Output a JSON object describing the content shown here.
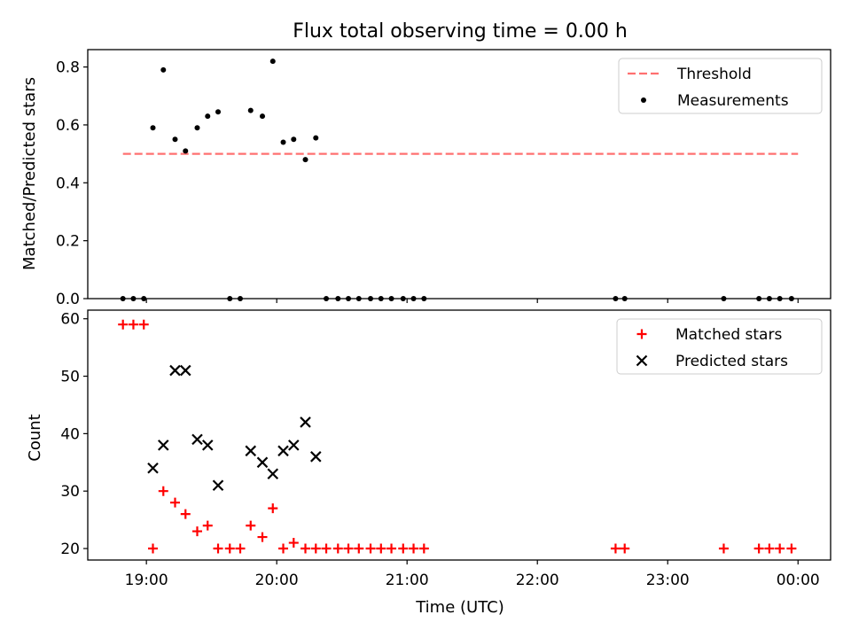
{
  "chart_data": [
    {
      "type": "scatter",
      "title": "Flux total observing time = 0.00 h",
      "xlabel": "",
      "ylabel": "Matched/Predicted stars",
      "xlim": [
        18.55,
        24.25
      ],
      "ylim": [
        0,
        0.86
      ],
      "yticks": [
        0.0,
        0.2,
        0.4,
        0.6,
        0.8
      ],
      "ytick_labels": [
        "0.0",
        "0.2",
        "0.4",
        "0.6",
        "0.8"
      ],
      "legend_position": "upper right",
      "colors": {
        "threshold": "#ff7070",
        "measurements": "#000000"
      },
      "series": [
        {
          "name": "Threshold",
          "kind": "dashed-line",
          "x": [
            18.82,
            24.0
          ],
          "y": [
            0.5,
            0.5
          ]
        },
        {
          "name": "Measurements",
          "kind": "dot",
          "x": [
            18.82,
            18.9,
            18.98,
            19.05,
            19.13,
            19.22,
            19.3,
            19.39,
            19.47,
            19.55,
            19.64,
            19.72,
            19.8,
            19.89,
            19.97,
            20.05,
            20.13,
            20.22,
            20.3,
            20.38,
            20.47,
            20.55,
            20.63,
            20.72,
            20.8,
            20.88,
            20.97,
            21.05,
            21.13,
            22.6,
            22.67,
            23.43,
            23.7,
            23.78,
            23.86,
            23.95
          ],
          "y": [
            0.0,
            0.0,
            0.0,
            0.59,
            0.79,
            0.55,
            0.51,
            0.59,
            0.63,
            0.645,
            0.0,
            0.0,
            0.65,
            0.63,
            0.82,
            0.54,
            0.55,
            0.48,
            0.555,
            0.0,
            0.0,
            0.0,
            0.0,
            0.0,
            0.0,
            0.0,
            0.0,
            0.0,
            0.0,
            0.0,
            0.0,
            0.0,
            0.0,
            0.0,
            0.0,
            0.0
          ]
        }
      ]
    },
    {
      "type": "scatter",
      "title": "",
      "xlabel": "Time (UTC)",
      "ylabel": "Count",
      "xlim": [
        18.55,
        24.25
      ],
      "ylim": [
        18,
        61.5
      ],
      "yticks": [
        20,
        30,
        40,
        50,
        60
      ],
      "ytick_labels": [
        "20",
        "30",
        "40",
        "50",
        "60"
      ],
      "xticks": [
        19,
        20,
        21,
        22,
        23,
        24
      ],
      "xtick_labels": [
        "19:00",
        "20:00",
        "21:00",
        "22:00",
        "23:00",
        "00:00"
      ],
      "legend_position": "upper right",
      "colors": {
        "matched": "#ff0000",
        "predicted": "#000000"
      },
      "series": [
        {
          "name": "Matched stars",
          "kind": "plus",
          "x": [
            18.82,
            18.9,
            18.98,
            19.05,
            19.13,
            19.22,
            19.3,
            19.39,
            19.47,
            19.55,
            19.64,
            19.72,
            19.8,
            19.89,
            19.97,
            20.05,
            20.13,
            20.22,
            20.3,
            20.38,
            20.47,
            20.55,
            20.63,
            20.72,
            20.8,
            20.88,
            20.97,
            21.05,
            21.13,
            22.6,
            22.67,
            23.43,
            23.7,
            23.78,
            23.86,
            23.95
          ],
          "y": [
            59,
            59,
            59,
            20,
            30,
            28,
            26,
            23,
            24,
            20,
            20,
            20,
            24,
            22,
            27,
            20,
            21,
            20,
            20,
            20,
            20,
            20,
            20,
            20,
            20,
            20,
            20,
            20,
            20,
            20,
            20,
            20,
            20,
            20,
            20,
            20
          ]
        },
        {
          "name": "Predicted stars",
          "kind": "cross",
          "x": [
            19.05,
            19.13,
            19.22,
            19.3,
            19.39,
            19.47,
            19.55,
            19.8,
            19.89,
            19.97,
            20.05,
            20.13,
            20.22,
            20.3
          ],
          "y": [
            34,
            38,
            51,
            51,
            39,
            38,
            31,
            37,
            35,
            33,
            37,
            38,
            42,
            36
          ]
        }
      ]
    }
  ]
}
